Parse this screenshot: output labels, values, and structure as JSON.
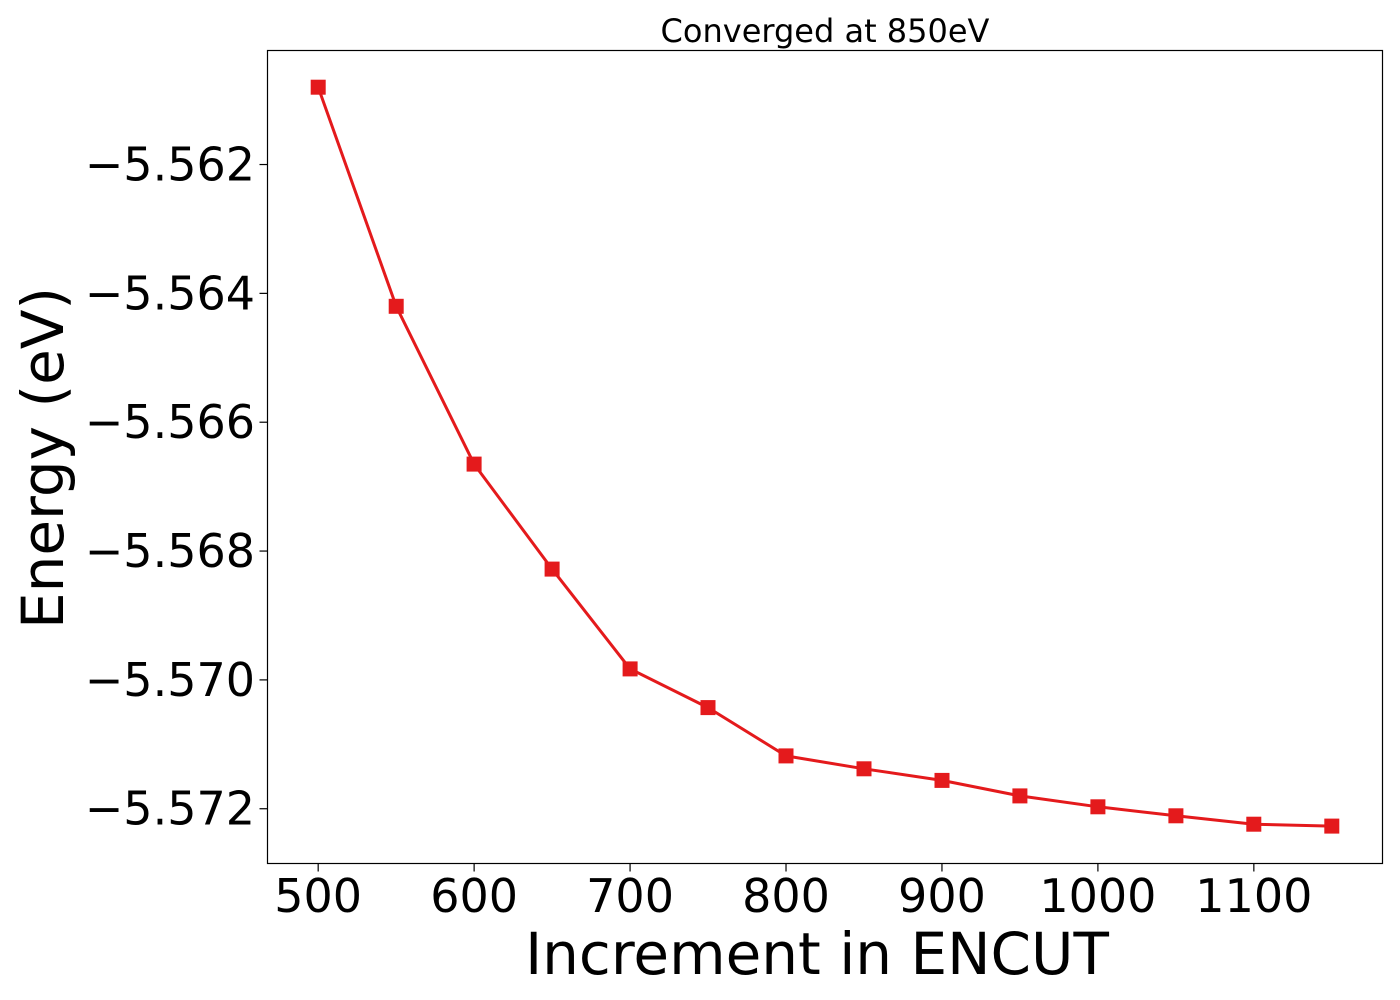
{
  "chart_data": {
    "type": "line",
    "title": "Converged at 850eV",
    "xlabel": "Increment in ENCUT",
    "ylabel": "Energy (eV)",
    "x": [
      500,
      550,
      600,
      650,
      700,
      750,
      800,
      850,
      900,
      950,
      1000,
      1050,
      1100,
      1150
    ],
    "series": [
      {
        "values": [
          -5.5608,
          -5.5642,
          -5.56665,
          -5.56828,
          -5.56983,
          -5.57043,
          -5.57118,
          -5.57138,
          -5.57156,
          -5.5718,
          -5.57197,
          -5.57211,
          -5.57224,
          -5.57227
        ],
        "color": "#e41a1c",
        "marker": "square"
      }
    ],
    "xticks": [
      500,
      600,
      700,
      800,
      900,
      1000,
      1100
    ],
    "xtick_labels": [
      "500",
      "600",
      "700",
      "800",
      "900",
      "1000",
      "1100"
    ],
    "yticks": [
      -5.562,
      -5.564,
      -5.566,
      -5.568,
      -5.57,
      -5.572
    ],
    "ytick_labels": [
      "−5.562",
      "−5.564",
      "−5.566",
      "−5.568",
      "−5.570",
      "−5.572"
    ],
    "xlim": [
      467.5,
      1182.5
    ],
    "ylim": [
      -5.57285,
      -5.56023
    ],
    "grid": false,
    "legend": "none"
  }
}
